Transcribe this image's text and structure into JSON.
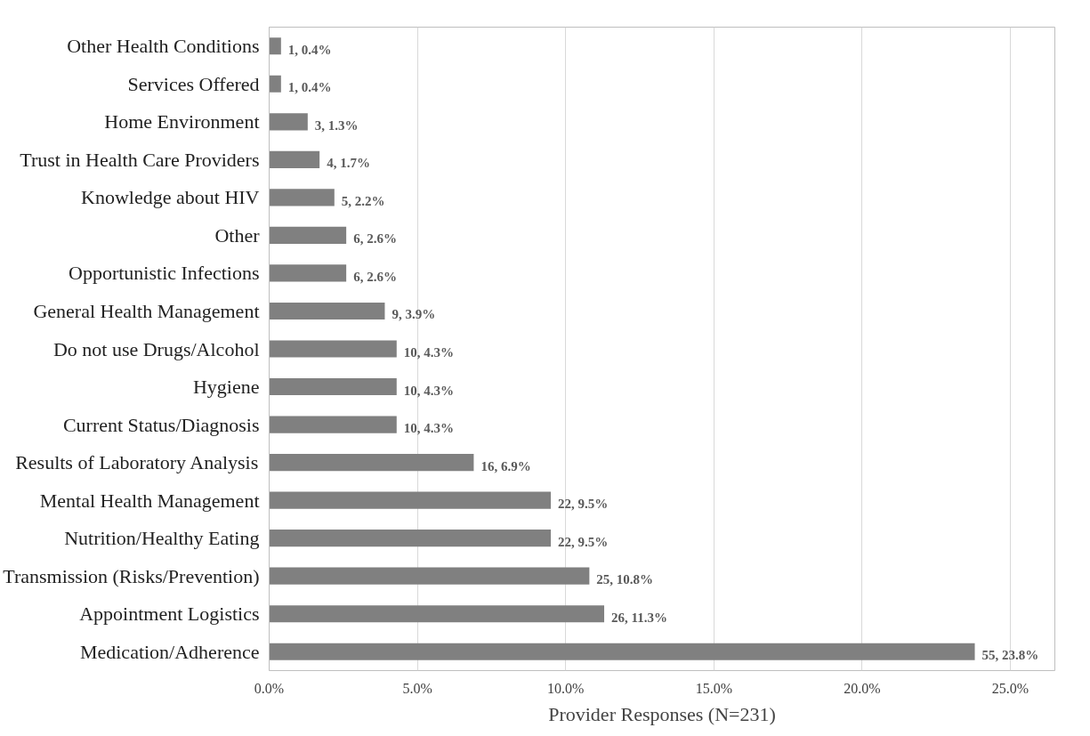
{
  "chart_data": {
    "type": "bar",
    "orientation": "horizontal",
    "xlabel": "Provider Responses (N=231)",
    "categories": [
      "Other Health Conditions",
      "Services Offered",
      "Home Environment",
      "Trust in Health Care Providers",
      "Knowledge about HIV",
      "Other",
      "Opportunistic Infections",
      "General Health Management",
      "Do not use Drugs/Alcohol",
      "Hygiene",
      "Current Status/Diagnosis",
      "Results of Laboratory Analysis",
      "Mental Health Management",
      "Nutrition/Healthy Eating",
      "Transmission (Risks/Prevention)",
      "Appointment Logistics",
      "Medication/Adherence"
    ],
    "values": [
      0.4,
      0.4,
      1.3,
      1.7,
      2.2,
      2.6,
      2.6,
      3.9,
      4.3,
      4.3,
      4.3,
      6.9,
      9.5,
      9.5,
      10.8,
      11.3,
      23.8
    ],
    "value_labels": [
      "1, 0.4%",
      "1, 0.4%",
      "3, 1.3%",
      "4, 1.7%",
      "5, 2.2%",
      "6, 2.6%",
      "6, 2.6%",
      "9, 3.9%",
      "10, 4.3%",
      "10, 4.3%",
      "10, 4.3%",
      "16, 6.9%",
      "22, 9.5%",
      "22, 9.5%",
      "25, 10.8%",
      "26, 11.3%",
      "55, 23.8%"
    ],
    "color": "#808080",
    "xlim": [
      0,
      26.5
    ],
    "xticks": [
      {
        "value": 0,
        "label": "0.0%"
      },
      {
        "value": 5,
        "label": "5.0%"
      },
      {
        "value": 10,
        "label": "10.0%"
      },
      {
        "value": 15,
        "label": "15.0%"
      },
      {
        "value": 20,
        "label": "20.0%"
      },
      {
        "value": 25,
        "label": "25.0%"
      }
    ],
    "grid": "x"
  }
}
